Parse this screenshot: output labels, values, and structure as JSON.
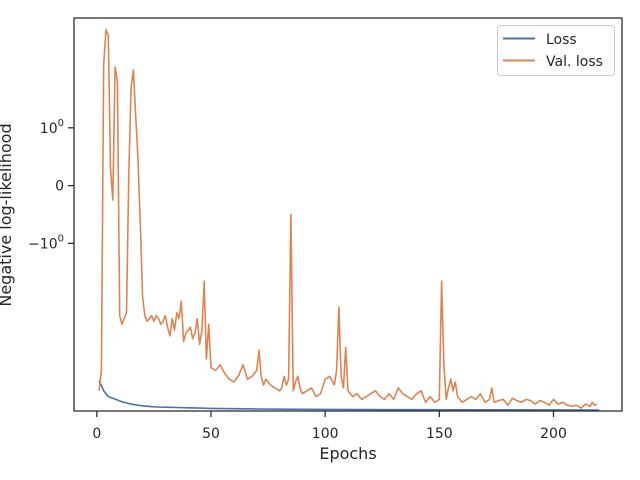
{
  "chart_data": {
    "type": "line",
    "title": "",
    "xlabel": "Epochs",
    "ylabel": "Negative log-likelihood",
    "xlim": [
      -10,
      230
    ],
    "xticks": [
      0,
      50,
      100,
      150,
      200
    ],
    "xtick_labels": [
      "0",
      "50",
      "100",
      "150",
      "200"
    ],
    "yscale": "symlog",
    "ylim": [
      -3.9,
      2.9
    ],
    "yticks": [
      -1,
      0,
      1
    ],
    "ytick_labels": [
      {
        "base": "−10",
        "exp": "0"
      },
      {
        "base": "0",
        "exp": ""
      },
      {
        "base": "10",
        "exp": "0"
      }
    ],
    "grid": false,
    "legend_position": "upper right",
    "series": [
      {
        "name": "Loss",
        "color": "#4c72b0",
        "x": [
          1,
          2,
          3,
          4,
          5,
          7,
          9,
          11,
          13,
          15,
          18,
          20,
          23,
          26,
          30,
          35,
          40,
          45,
          50,
          60,
          70,
          80,
          90,
          100,
          120,
          140,
          160,
          180,
          200,
          220
        ],
        "y": [
          -3.38,
          -3.46,
          -3.55,
          -3.6,
          -3.65,
          -3.68,
          -3.71,
          -3.74,
          -3.76,
          -3.78,
          -3.8,
          -3.81,
          -3.82,
          -3.83,
          -3.835,
          -3.84,
          -3.845,
          -3.85,
          -3.855,
          -3.86,
          -3.865,
          -3.868,
          -3.87,
          -3.872,
          -3.875,
          -3.877,
          -3.879,
          -3.88,
          -3.881,
          -3.882
        ]
      },
      {
        "name": "Val. loss",
        "color": "#dd8452",
        "x": [
          1,
          2,
          3,
          4,
          5,
          6,
          7,
          8,
          9,
          10,
          11,
          12,
          13,
          14,
          15,
          16,
          17,
          18,
          19,
          20,
          21,
          22,
          23,
          24,
          25,
          26,
          27,
          28,
          29,
          30,
          31,
          32,
          33,
          34,
          35,
          36,
          37,
          38,
          39,
          40,
          41,
          42,
          43,
          44,
          45,
          46,
          47,
          48,
          49,
          50,
          52,
          54,
          56,
          58,
          60,
          62,
          64,
          66,
          68,
          70,
          71,
          72,
          73,
          74,
          76,
          78,
          80,
          81,
          82,
          83,
          84,
          85,
          86,
          87,
          88,
          89,
          90,
          92,
          94,
          96,
          98,
          100,
          102,
          104,
          105,
          106,
          107,
          108,
          109,
          110,
          112,
          114,
          116,
          118,
          120,
          122,
          124,
          126,
          128,
          130,
          132,
          134,
          136,
          138,
          140,
          142,
          144,
          146,
          148,
          150,
          151,
          152,
          153,
          154,
          155,
          156,
          157,
          158,
          160,
          162,
          164,
          166,
          168,
          170,
          172,
          173,
          174,
          176,
          178,
          180,
          182,
          184,
          186,
          188,
          190,
          192,
          194,
          196,
          198,
          200,
          202,
          204,
          206,
          208,
          210,
          212,
          214,
          216,
          217,
          218,
          219
        ],
        "y": [
          -3.55,
          -3.2,
          2.1,
          2.7,
          2.6,
          0.3,
          -0.25,
          2.05,
          1.8,
          -2.25,
          -2.4,
          -2.3,
          -2.2,
          0.2,
          1.7,
          2.0,
          1.2,
          0.5,
          -0.6,
          -1.9,
          -2.25,
          -2.35,
          -2.3,
          -2.25,
          -2.35,
          -2.25,
          -2.3,
          -2.4,
          -2.35,
          -2.25,
          -2.45,
          -2.6,
          -2.3,
          -2.5,
          -2.2,
          -2.3,
          -2.0,
          -2.7,
          -2.55,
          -2.5,
          -2.45,
          -2.65,
          -2.55,
          -2.3,
          -2.75,
          -2.5,
          -1.65,
          -3.0,
          -2.4,
          -3.15,
          -3.2,
          -3.1,
          -3.25,
          -3.35,
          -3.4,
          -3.3,
          -3.1,
          -3.35,
          -3.3,
          -3.2,
          -2.85,
          -3.3,
          -3.45,
          -3.35,
          -3.45,
          -3.5,
          -3.55,
          -3.5,
          -3.3,
          -3.45,
          -3.35,
          -0.5,
          -3.55,
          -3.4,
          -3.3,
          -3.5,
          -3.6,
          -3.55,
          -3.5,
          -3.65,
          -3.6,
          -3.35,
          -3.3,
          -3.45,
          -3.2,
          -2.1,
          -3.3,
          -3.5,
          -2.8,
          -3.55,
          -3.65,
          -3.6,
          -3.7,
          -3.65,
          -3.6,
          -3.55,
          -3.65,
          -3.7,
          -3.6,
          -3.7,
          -3.5,
          -3.6,
          -3.65,
          -3.7,
          -3.6,
          -3.55,
          -3.75,
          -3.65,
          -3.75,
          -3.7,
          -1.65,
          -3.1,
          -3.7,
          -3.5,
          -3.35,
          -3.55,
          -3.4,
          -3.65,
          -3.75,
          -3.7,
          -3.65,
          -3.7,
          -3.6,
          -3.75,
          -3.7,
          -3.5,
          -3.75,
          -3.72,
          -3.7,
          -3.8,
          -3.68,
          -3.72,
          -3.75,
          -3.7,
          -3.72,
          -3.78,
          -3.72,
          -3.75,
          -3.8,
          -3.7,
          -3.78,
          -3.75,
          -3.8,
          -3.82,
          -3.8,
          -3.85,
          -3.78,
          -3.82,
          -3.75,
          -3.8,
          -3.78
        ]
      }
    ]
  }
}
